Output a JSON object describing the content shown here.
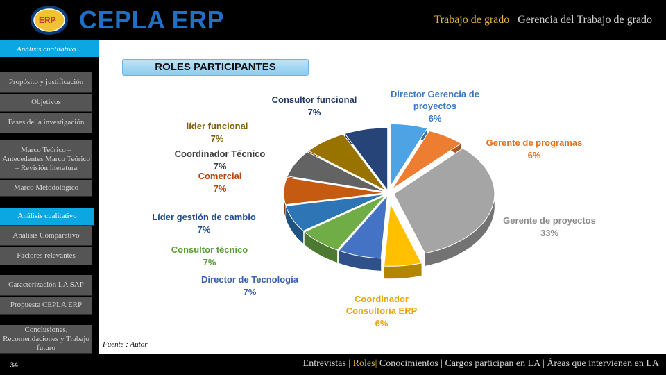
{
  "header": {
    "brand": "CEPLA ERP",
    "logo_text": "ERP",
    "nav_active": "Trabajo de grado",
    "nav_other": "Gerencia del Trabajo de grado"
  },
  "sidebar": {
    "top_label": "Análisis cualitativo",
    "items": [
      {
        "label": "Propósito y justificación"
      },
      {
        "label": "Objetivos"
      },
      {
        "label": "Fases de la investigación"
      },
      {
        "label": "Marco Teórico – Antecedentes Marco Teórico – Revisión literatura"
      },
      {
        "label": "Marco Metodológico"
      },
      {
        "label": "Análisis cualitativo"
      },
      {
        "label": "Análisis Comparativo"
      },
      {
        "label": "Factores relevantes"
      },
      {
        "label": "Caracterización LA SAP"
      },
      {
        "label": "Propuesta CEPLA ERP"
      },
      {
        "label": "Conclusiones, Recomendaciones y Trabajo futuro"
      }
    ],
    "page_number": "34"
  },
  "chart_title": "ROLES PARTICIPANTES",
  "source": "Fuente : Autor",
  "footer": {
    "item1": "Entrevistas",
    "item2": "Roles",
    "item3": "Conocimientos",
    "item4": "Cargos participan en LA",
    "item5": "Áreas que intervienen en LA"
  },
  "colors": {
    "accent": "#0aa7e2",
    "gold": "#e5b240",
    "brand": "#1f6fc4"
  },
  "chart_data": {
    "type": "pie",
    "title": "ROLES PARTICIPANTES",
    "slices": [
      {
        "name": "Director Gerencia de proyectos",
        "label_lines": [
          "Director Gerencia de",
          "proyectos"
        ],
        "value": 6,
        "value_label": "6%",
        "color": "#4ea3e4",
        "label_color": "#3a78c2"
      },
      {
        "name": "Gerente de programas",
        "label_lines": [
          "Gerente de programas"
        ],
        "value": 6,
        "value_label": "6%",
        "color": "#ed7d31",
        "label_color": "#e07020"
      },
      {
        "name": "Gerente de proyectos",
        "label_lines": [
          "Gerente de proyectos"
        ],
        "value": 33,
        "value_label": "33%",
        "color": "#a5a5a5",
        "label_color": "#8c8c8c"
      },
      {
        "name": "Coordinador Consultoría ERP",
        "label_lines": [
          "Coordinador",
          "Consultoría ERP"
        ],
        "value": 6,
        "value_label": "6%",
        "color": "#ffc000",
        "label_color": "#e6a800"
      },
      {
        "name": "Director de Tecnología",
        "label_lines": [
          "Director de Tecnología"
        ],
        "value": 7,
        "value_label": "7%",
        "color": "#4472c4",
        "label_color": "#3b62b0"
      },
      {
        "name": "Consultor técnico",
        "label_lines": [
          "Consultor técnico"
        ],
        "value": 7,
        "value_label": "7%",
        "color": "#70ad47",
        "label_color": "#5a9a34"
      },
      {
        "name": "Líder gestión de cambio",
        "label_lines": [
          "Líder gestión de cambio"
        ],
        "value": 7,
        "value_label": "7%",
        "color": "#2e75b6",
        "label_color": "#1f4e8c"
      },
      {
        "name": "Comercial",
        "label_lines": [
          "Comercial"
        ],
        "value": 7,
        "value_label": "7%",
        "color": "#c55a11",
        "label_color": "#b5470d"
      },
      {
        "name": "Coordinador Técnico",
        "label_lines": [
          "Coordinador Técnico"
        ],
        "value": 7,
        "value_label": "7%",
        "color": "#636363",
        "label_color": "#3d3d3d"
      },
      {
        "name": "líder funcional",
        "label_lines": [
          "líder funcional"
        ],
        "value": 7,
        "value_label": "7%",
        "color": "#997300",
        "label_color": "#7d5f00"
      },
      {
        "name": "Consultor funcional",
        "label_lines": [
          "Consultor funcional"
        ],
        "value": 7,
        "value_label": "7%",
        "color": "#264478",
        "label_color": "#1f3864"
      }
    ]
  }
}
